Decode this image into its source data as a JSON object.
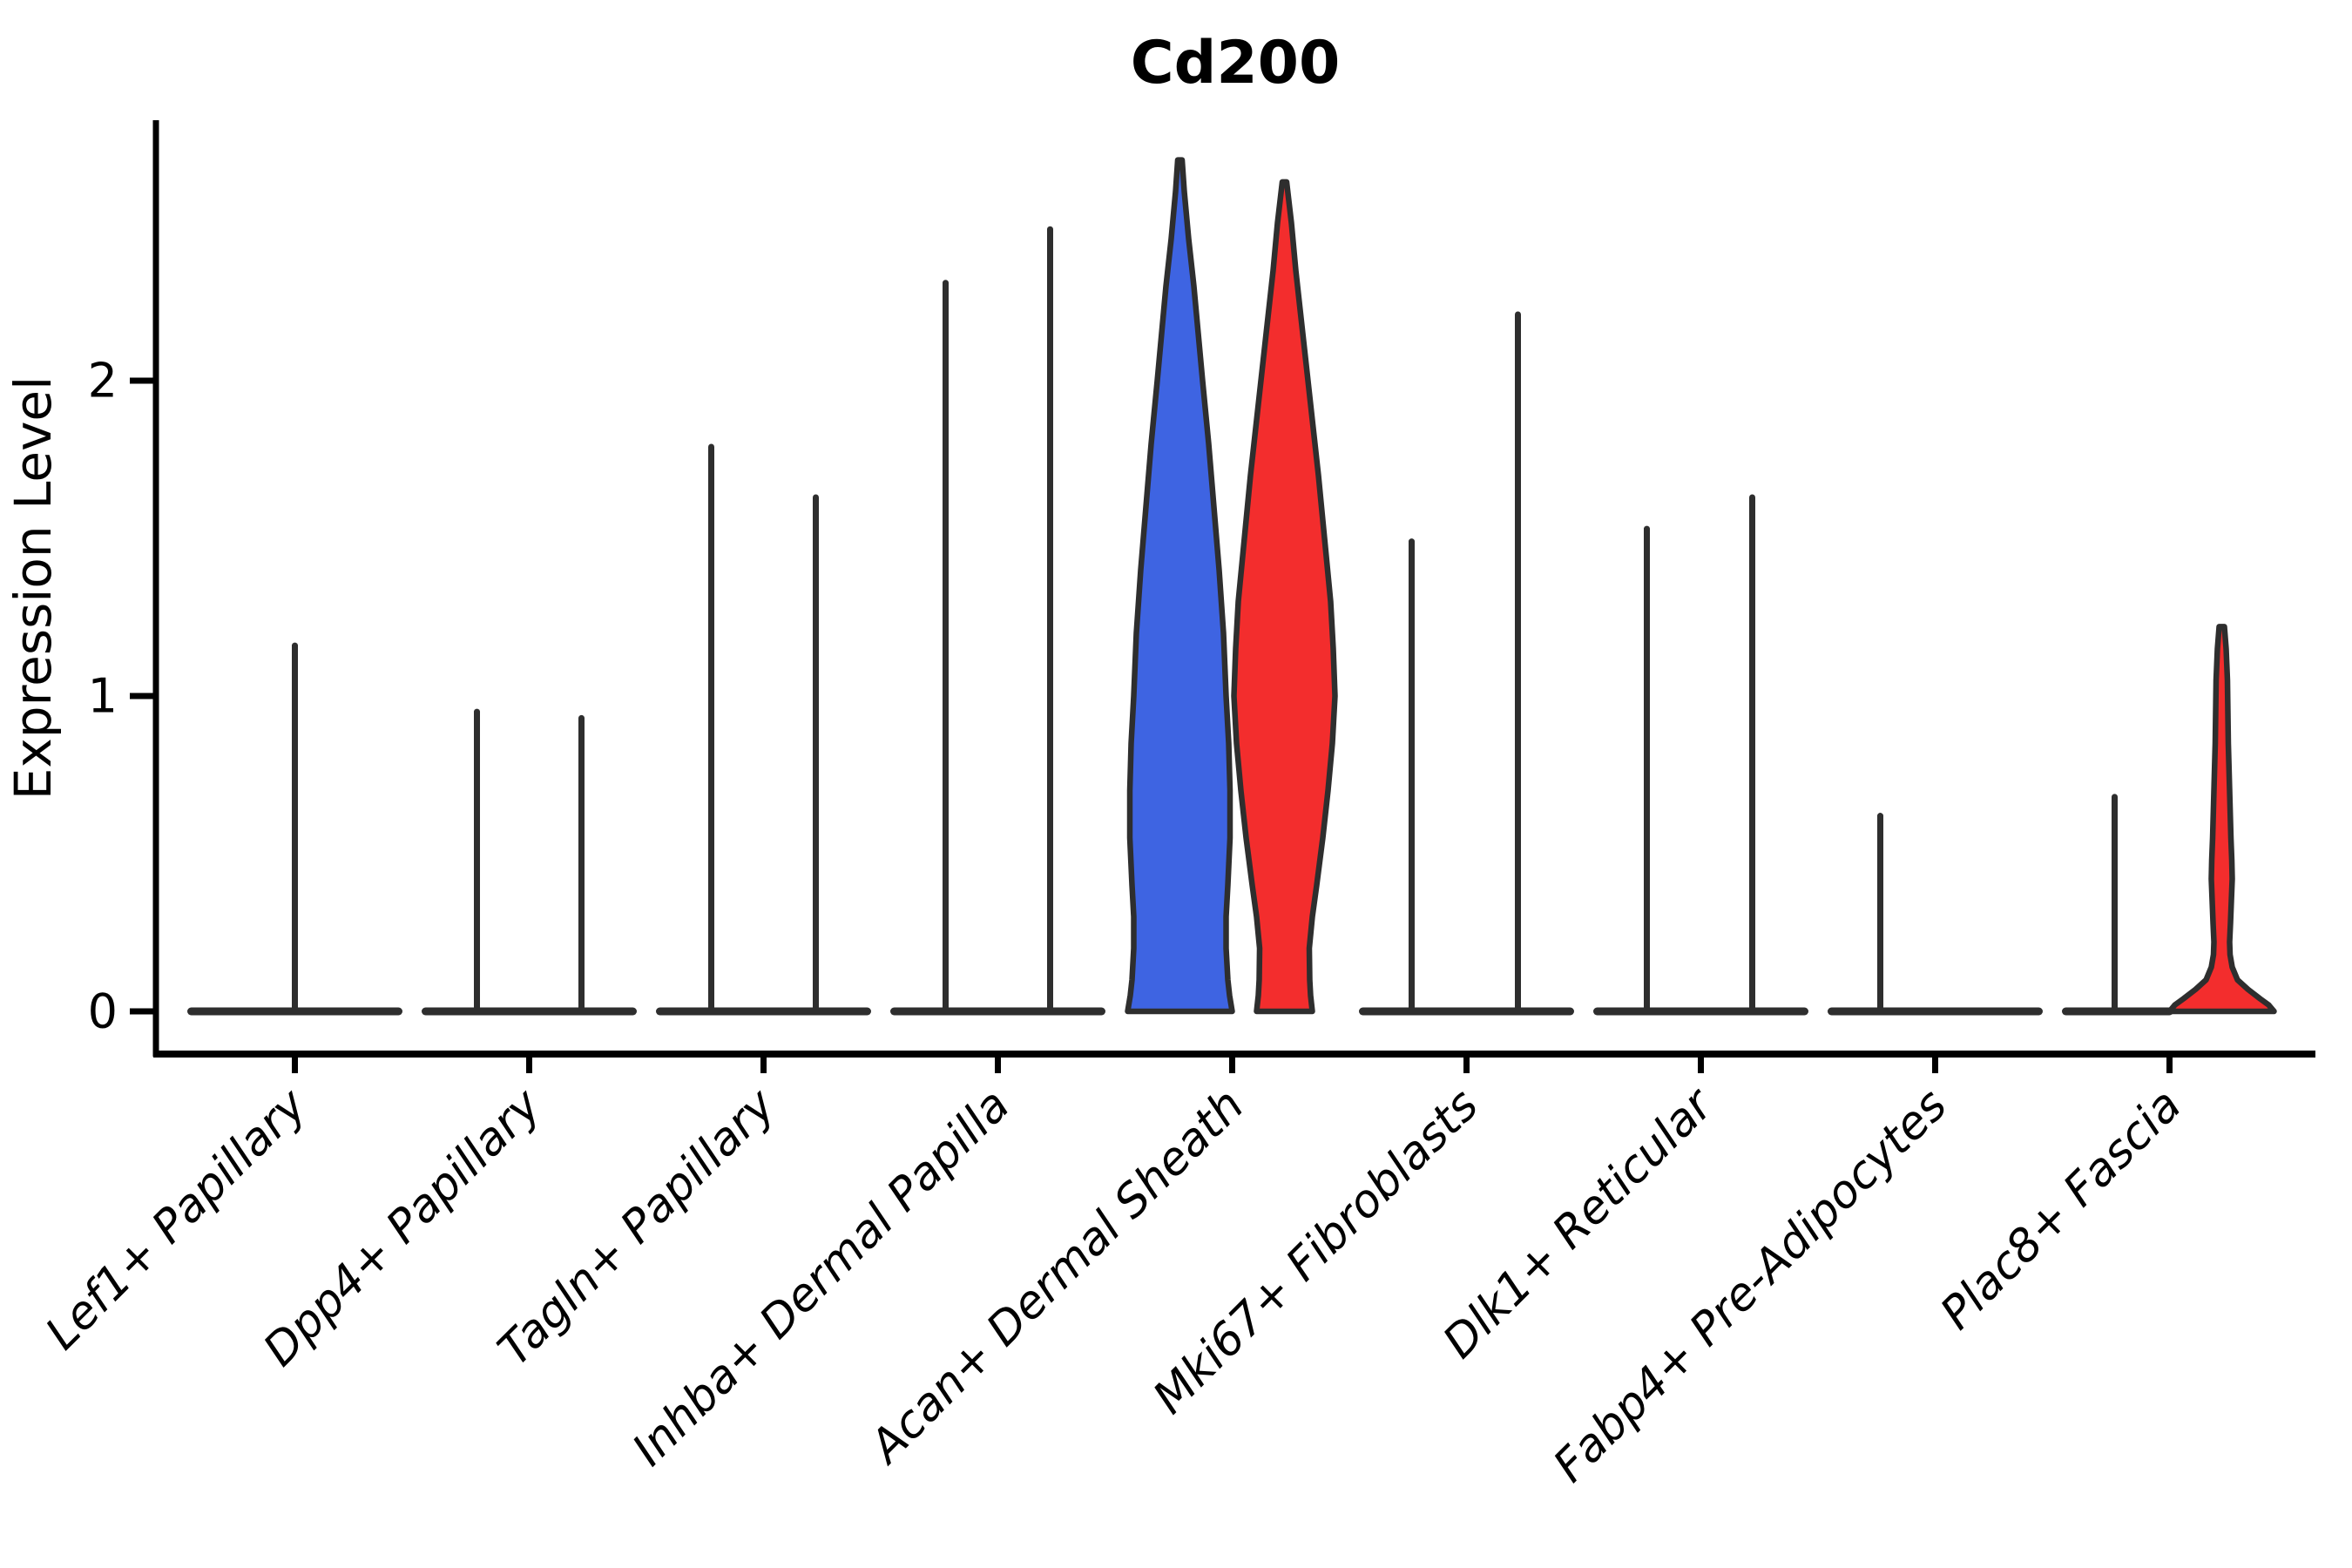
{
  "chart_data": {
    "type": "violin",
    "title": "Cd200",
    "xlabel": "",
    "ylabel": "Expression Level",
    "yticks": [
      0,
      1,
      2
    ],
    "ylim": [
      -0.14,
      2.82
    ],
    "legend_position": "none",
    "grid": false,
    "group_colors": {
      "group1_blue": "#3E64E2",
      "group2_red": "#F32D2D"
    },
    "outline_color": "#2E2E2E",
    "categories": [
      "Lef1+ Papillary",
      "Dpp4+ Papillary",
      "Tagln+ Papillary",
      "Inhba+ Dermal Papilla",
      "Acan+ Dermal Sheath",
      "Mki67+ Fibroblasts",
      "Dlk1+ Reticular",
      "Fabp4+ Pre-Adipocytes",
      "Plac8+ Fascia"
    ],
    "violins": [
      {
        "category": "Lef1+ Papillary",
        "items": [
          {
            "kind": "spike",
            "offset": 0,
            "max": 1.16,
            "color": null
          }
        ],
        "baseline_span": [
          -119,
          119
        ]
      },
      {
        "category": "Dpp4+ Papillary",
        "items": [
          {
            "kind": "spike",
            "offset": -60,
            "max": 0.95,
            "color": null
          },
          {
            "kind": "spike",
            "offset": 60,
            "max": 0.93,
            "color": null
          }
        ],
        "baseline_span": [
          -119,
          119
        ]
      },
      {
        "category": "Tagln+ Papillary",
        "items": [
          {
            "kind": "spike",
            "offset": -60,
            "max": 1.79,
            "color": null
          },
          {
            "kind": "spike",
            "offset": 60,
            "max": 1.63,
            "color": null
          }
        ],
        "baseline_span": [
          -119,
          119
        ]
      },
      {
        "category": "Inhba+ Dermal Papilla",
        "items": [
          {
            "kind": "spike",
            "offset": -60,
            "max": 2.31,
            "color": null
          },
          {
            "kind": "spike",
            "offset": 60,
            "max": 2.48,
            "color": null
          }
        ],
        "baseline_span": [
          -119,
          119
        ]
      },
      {
        "category": "Acan+ Dermal Sheath",
        "items": [
          {
            "kind": "density",
            "offset": -60,
            "max": 2.7,
            "color": "#3E64E2",
            "profile": [
              [
                2.7,
                2.5
              ],
              [
                2.6,
                5
              ],
              [
                2.45,
                10
              ],
              [
                2.3,
                16
              ],
              [
                2.15,
                21
              ],
              [
                2.0,
                26
              ],
              [
                1.8,
                33
              ],
              [
                1.6,
                39
              ],
              [
                1.4,
                45
              ],
              [
                1.2,
                50
              ],
              [
                1.0,
                53
              ],
              [
                0.85,
                56
              ],
              [
                0.7,
                57.5
              ],
              [
                0.55,
                57.5
              ],
              [
                0.4,
                55
              ],
              [
                0.3,
                53
              ],
              [
                0.2,
                53
              ],
              [
                0.1,
                55
              ],
              [
                0.05,
                57
              ],
              [
                0.0,
                60
              ]
            ]
          },
          {
            "kind": "density",
            "offset": 60,
            "max": 2.63,
            "color": "#F32D2D",
            "profile": [
              [
                2.63,
                2.5
              ],
              [
                2.5,
                8
              ],
              [
                2.35,
                13
              ],
              [
                2.2,
                19
              ],
              [
                2.05,
                25
              ],
              [
                1.9,
                31
              ],
              [
                1.7,
                39
              ],
              [
                1.5,
                46
              ],
              [
                1.3,
                53
              ],
              [
                1.15,
                56
              ],
              [
                1.0,
                58
              ],
              [
                0.85,
                55
              ],
              [
                0.7,
                50
              ],
              [
                0.55,
                44
              ],
              [
                0.4,
                37
              ],
              [
                0.3,
                32
              ],
              [
                0.2,
                28.5
              ],
              [
                0.1,
                29
              ],
              [
                0.05,
                30
              ],
              [
                0.0,
                32
              ]
            ]
          }
        ],
        "baseline_span": null
      },
      {
        "category": "Mki67+ Fibroblasts",
        "items": [
          {
            "kind": "spike",
            "offset": -63,
            "max": 1.49,
            "color": null
          },
          {
            "kind": "spike",
            "offset": 59,
            "max": 2.21,
            "color": null
          }
        ],
        "baseline_span": [
          -119,
          119
        ]
      },
      {
        "category": "Dlk1+ Reticular",
        "items": [
          {
            "kind": "spike",
            "offset": -62,
            "max": 1.53,
            "color": null
          },
          {
            "kind": "spike",
            "offset": 59,
            "max": 1.63,
            "color": null
          }
        ],
        "baseline_span": [
          -119,
          119
        ]
      },
      {
        "category": "Fabp4+ Pre-Adipocytes",
        "items": [
          {
            "kind": "spike",
            "offset": -63,
            "max": 0.62,
            "color": null
          }
        ],
        "baseline_span": [
          -119,
          119
        ]
      },
      {
        "category": "Plac8+ Fascia",
        "items": [
          {
            "kind": "spike",
            "offset": -63,
            "max": 0.68,
            "color": null
          },
          {
            "kind": "density",
            "offset": 60,
            "max": 1.22,
            "color": "#F32D2D",
            "profile": [
              [
                1.22,
                3
              ],
              [
                1.15,
                5
              ],
              [
                1.05,
                6.5
              ],
              [
                0.95,
                7
              ],
              [
                0.85,
                7.5
              ],
              [
                0.75,
                8.5
              ],
              [
                0.65,
                9.5
              ],
              [
                0.55,
                10.5
              ],
              [
                0.48,
                11.5
              ],
              [
                0.42,
                12
              ],
              [
                0.35,
                11
              ],
              [
                0.28,
                10
              ],
              [
                0.22,
                9
              ],
              [
                0.18,
                9.5
              ],
              [
                0.14,
                12
              ],
              [
                0.1,
                18
              ],
              [
                0.07,
                30
              ],
              [
                0.04,
                44
              ],
              [
                0.02,
                54
              ],
              [
                0.0,
                60
              ]
            ]
          }
        ],
        "baseline_span": [
          -119,
          0
        ]
      }
    ]
  }
}
